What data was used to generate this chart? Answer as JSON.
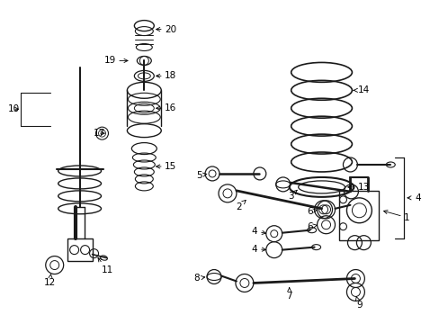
{
  "bg_color": "#ffffff",
  "line_color": "#1a1a1a",
  "fig_width": 4.89,
  "fig_height": 3.6,
  "dpi": 100,
  "label_fontsize": 7.5,
  "lw_thin": 0.7,
  "lw_med": 1.2,
  "lw_thick": 2.0
}
